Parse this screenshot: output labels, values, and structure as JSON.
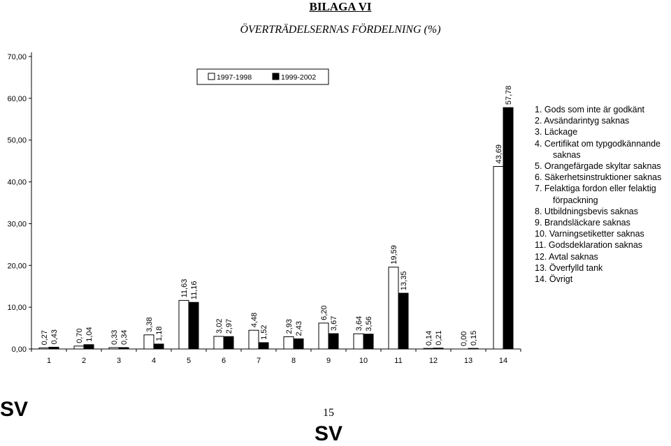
{
  "header": {
    "title": "BILAGA VI"
  },
  "chart_data": {
    "type": "bar",
    "title": "ÖVERTRÄDELSERNAS FÖRDELNING (%)",
    "categories": [
      "1",
      "2",
      "3",
      "4",
      "5",
      "6",
      "7",
      "8",
      "9",
      "10",
      "11",
      "12",
      "13",
      "14"
    ],
    "series": [
      {
        "name": "1997-1998",
        "values": [
          0.27,
          0.7,
          0.33,
          3.38,
          11.63,
          3.02,
          4.48,
          2.93,
          6.2,
          3.64,
          19.59,
          0.14,
          0.0,
          43.69
        ],
        "labels": [
          "0,27",
          "0,70",
          "0,33",
          "3,38",
          "11,63",
          "3,02",
          "4,48",
          "2,93",
          "6,20",
          "3,64",
          "19,59",
          "0,14",
          "0,00",
          "43,69"
        ],
        "color": "#ffffff"
      },
      {
        "name": "1999-2002",
        "values": [
          0.43,
          1.04,
          0.34,
          1.18,
          11.16,
          2.97,
          1.52,
          2.43,
          3.67,
          3.56,
          13.35,
          0.21,
          0.15,
          57.78
        ],
        "labels": [
          "0,43",
          "1,04",
          "0,34",
          "1,18",
          "11,16",
          "2,97",
          "1,52",
          "2,43",
          "3,67",
          "3,56",
          "13,35",
          "0,21",
          "0,15",
          "57,78"
        ],
        "color": "#000000"
      }
    ],
    "yticks": [
      "0,00",
      "10,00",
      "20,00",
      "30,00",
      "40,00",
      "50,00",
      "60,00",
      "70,00"
    ],
    "ylim": [
      0,
      70
    ],
    "grid": false,
    "legend_position": "top"
  },
  "category_legend": [
    {
      "text": "1. Gods som inte är godkänt",
      "indent": false
    },
    {
      "text": "2. Avsändarintyg saknas",
      "indent": false
    },
    {
      "text": "3. Läckage",
      "indent": false
    },
    {
      "text": "4. Certifikat om typgodkännande",
      "indent": false
    },
    {
      "text": "saknas",
      "indent": true
    },
    {
      "text": "5. Orangefärgade skyltar saknas",
      "indent": false
    },
    {
      "text": "6. Säkerhetsinstruktioner saknas",
      "indent": false
    },
    {
      "text": "7. Felaktiga fordon eller felaktig",
      "indent": false
    },
    {
      "text": "förpackning",
      "indent": true
    },
    {
      "text": "8. Utbildningsbevis saknas",
      "indent": false
    },
    {
      "text": "9. Brandsläckare saknas",
      "indent": false
    },
    {
      "text": "10. Varningsetiketter saknas",
      "indent": false
    },
    {
      "text": "11. Godsdeklaration saknas",
      "indent": false
    },
    {
      "text": "12. Avtal saknas",
      "indent": false
    },
    {
      "text": "13. Överfylld tank",
      "indent": false
    },
    {
      "text": "14. Övrigt",
      "indent": false
    }
  ],
  "footer": {
    "lang_left": "SV",
    "page_number": "15",
    "lang_bottom": "SV"
  }
}
